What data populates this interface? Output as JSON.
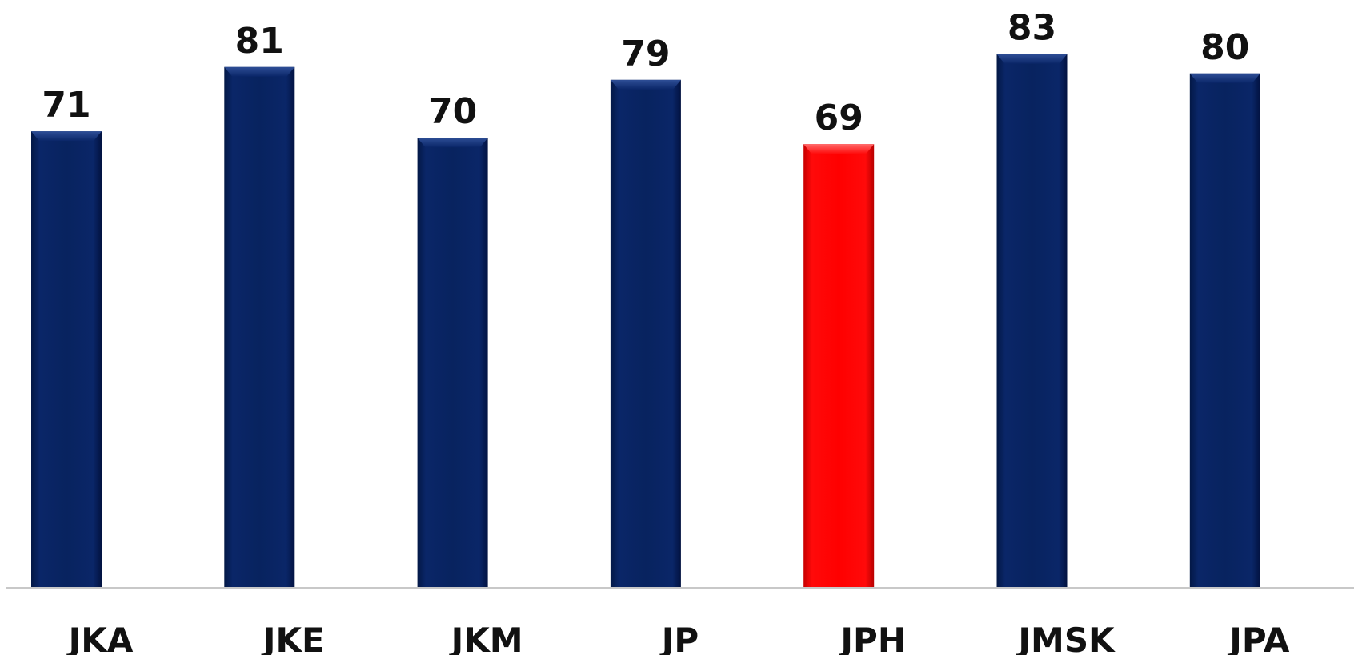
{
  "chart_data": {
    "type": "bar",
    "categories": [
      "JKA",
      "JKE",
      "JKM",
      "JP",
      "JPH",
      "JMSK",
      "JPA"
    ],
    "values": [
      71,
      81,
      70,
      79,
      69,
      83,
      80
    ],
    "highlight_category": "JPH",
    "colors": {
      "bar": "#06215E",
      "highlight": "#FF0000",
      "axis": "#C8C8C8"
    },
    "title": "",
    "xlabel": "",
    "ylabel": "",
    "grid": false,
    "legend": "none"
  }
}
